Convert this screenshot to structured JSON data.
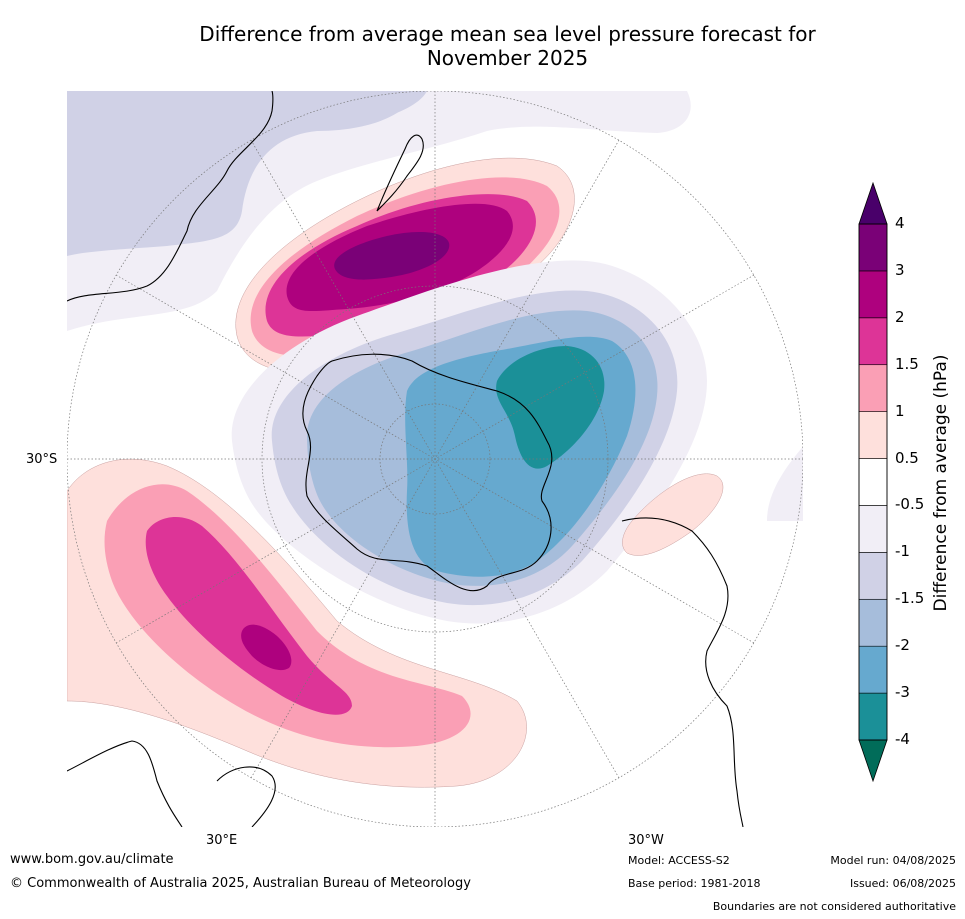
{
  "title_line1": "Difference from average mean sea level pressure forecast for",
  "title_line2": "November 2025",
  "map": {
    "projection": "south-polar-stereographic",
    "lat_labels": [
      "30°S"
    ],
    "lon_labels": [
      "30°E",
      "30°W"
    ]
  },
  "colorbar": {
    "title": "Difference from average (hPa)",
    "tick_labels": [
      "-4",
      "-3",
      "-2",
      "-1.5",
      "-1",
      "-0.5",
      "0.5",
      "1",
      "1.5",
      "2",
      "3",
      "4"
    ],
    "band_colors_low_to_high": [
      "#1b9098",
      "#66a9cf",
      "#a6bddb",
      "#d0d1e6",
      "#f1eef6",
      "#ffffff",
      "#fee0dc",
      "#fa9fb5",
      "#dd3497",
      "#ae017e",
      "#7a0177"
    ],
    "under_color": "#016c59",
    "over_color": "#49006a"
  },
  "footer": {
    "website": "www.bom.gov.au/climate",
    "copyright": "© Commonwealth of Australia 2025, Australian Bureau of Meteorology",
    "model": "Model: ACCESS-S2",
    "base_period": "Base period: 1981-2018",
    "model_run": "Model run: 04/08/2025",
    "issued": "Issued: 06/08/2025",
    "disclaimer": "Boundaries are not considered authoritative"
  }
}
